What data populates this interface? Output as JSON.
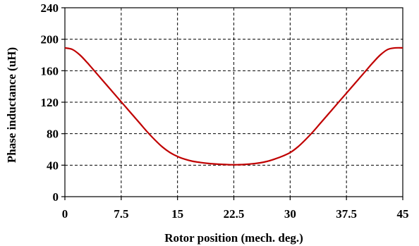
{
  "chart_data": {
    "type": "line",
    "xlabel": "Rotor position (mech. deg.)",
    "ylabel": "Phase inductance (uH)",
    "xlim": [
      0,
      45
    ],
    "ylim": [
      0,
      240
    ],
    "xticks": [
      0,
      7.5,
      15,
      22.5,
      30,
      37.5,
      45
    ],
    "xtick_labels": [
      "0",
      "7.5",
      "15",
      "22.5",
      "30",
      "37.5",
      "45"
    ],
    "yticks": [
      0,
      40,
      80,
      120,
      160,
      200,
      240
    ],
    "ytick_labels": [
      "0",
      "40",
      "80",
      "120",
      "160",
      "200",
      "240"
    ],
    "grid": true,
    "legend": "none",
    "series": [
      {
        "color": "#c00000",
        "x": [
          0,
          1,
          2,
          3,
          4,
          5,
          6,
          7,
          8,
          9,
          10,
          11,
          12,
          13,
          14,
          15,
          16,
          17,
          18,
          19,
          20,
          21,
          22,
          22.5,
          23,
          24,
          25,
          26,
          27,
          28,
          29,
          30,
          31,
          32,
          33,
          34,
          35,
          36,
          37,
          38,
          39,
          40,
          41,
          42,
          43,
          44,
          45
        ],
        "y": [
          189,
          187,
          180,
          170,
          159,
          148,
          137,
          126,
          115,
          104,
          93,
          82,
          72,
          63,
          56,
          51,
          47.5,
          45,
          43.5,
          42.3,
          41.5,
          41,
          40.6,
          40.5,
          40.6,
          41,
          41.8,
          43,
          45,
          48,
          51.5,
          56,
          63,
          72,
          82,
          93,
          104,
          115,
          126,
          137,
          148,
          159,
          170,
          180,
          187,
          189,
          189
        ]
      }
    ]
  }
}
